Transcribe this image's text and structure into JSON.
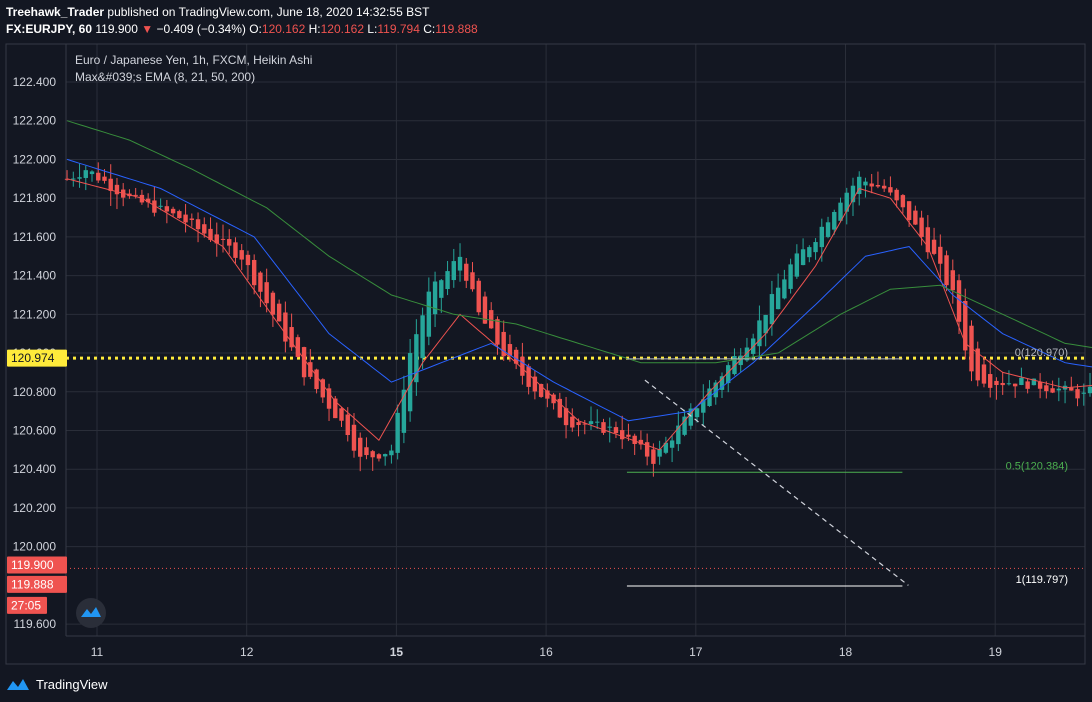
{
  "header": {
    "author": "Treehawk_Trader",
    "published_text": "published on TradingView.com, June 18, 2020 14:32:55 BST",
    "symbol": "FX:EURJPY, 60",
    "last": "119.900",
    "arrow": "▼",
    "change": "−0.409 (−0.34%)",
    "o_label": "O:",
    "o_value": "120.162",
    "h_label": "H:",
    "h_value": "120.162",
    "l_label": "L:",
    "l_value": "119.794",
    "c_label": "C:",
    "c_value": "119.888"
  },
  "legend": {
    "instrument": "Euro / Japanese Yen, 1h, FXCM, Heikin Ashi",
    "indicator": "Max&#039;s EMA (8, 21, 50, 200)"
  },
  "footer": {
    "brand": "TradingView",
    "logo_icon": "tradingview-logo-icon"
  },
  "colors": {
    "up": "#26a69a",
    "down": "#ef5350",
    "ema8": "#ef5350",
    "ema21": "#2962ff",
    "ema50": "#388e3c",
    "yellow": "#ffeb3b"
  },
  "chart_data": {
    "type": "candlestick",
    "title": "Euro / Japanese Yen, 1h, FXCM, Heikin Ashi",
    "ylim": [
      119.55,
      122.49
    ],
    "y_ticks": [
      "122.400",
      "122.200",
      "122.000",
      "121.800",
      "121.600",
      "121.400",
      "121.200",
      "121.000",
      "120.800",
      "120.600",
      "120.400",
      "120.200",
      "120.000",
      "119.600"
    ],
    "y_tick_values": [
      122.4,
      122.2,
      122.0,
      121.8,
      121.6,
      121.4,
      121.2,
      121.0,
      120.8,
      120.6,
      120.4,
      120.2,
      120.0,
      119.6
    ],
    "x_labels": [
      {
        "text": "11",
        "day": 0,
        "bold": false
      },
      {
        "text": "12",
        "day": 1,
        "bold": false
      },
      {
        "text": "15",
        "day": 2,
        "bold": true
      },
      {
        "text": "16",
        "day": 3,
        "bold": false
      },
      {
        "text": "17",
        "day": 4,
        "bold": false
      },
      {
        "text": "18",
        "day": 5,
        "bold": false
      },
      {
        "text": "19",
        "day": 6,
        "bold": false
      }
    ],
    "bars_per_day": 24,
    "start_day": -0.2,
    "price_path": [
      [
        0,
        121.9
      ],
      [
        3,
        121.95
      ],
      [
        10,
        121.8
      ],
      [
        18,
        121.7
      ],
      [
        28,
        121.5
      ],
      [
        38,
        120.9
      ],
      [
        45,
        120.6
      ],
      [
        47,
        120.45
      ],
      [
        52,
        120.5
      ],
      [
        55,
        121.0
      ],
      [
        58,
        121.3
      ],
      [
        63,
        121.5
      ],
      [
        66,
        121.2
      ],
      [
        70,
        121.0
      ],
      [
        74,
        120.85
      ],
      [
        80,
        120.65
      ],
      [
        88,
        120.6
      ],
      [
        94,
        120.45
      ],
      [
        99,
        120.65
      ],
      [
        104,
        120.85
      ],
      [
        110,
        121.1
      ],
      [
        116,
        121.45
      ],
      [
        120,
        121.6
      ],
      [
        124,
        121.8
      ],
      [
        127,
        121.9
      ],
      [
        131,
        121.85
      ],
      [
        135,
        121.7
      ],
      [
        139,
        121.5
      ],
      [
        142,
        121.3
      ],
      [
        145,
        120.9
      ],
      [
        148,
        120.85
      ],
      [
        153,
        120.85
      ],
      [
        158,
        120.82
      ],
      [
        163,
        120.78
      ],
      [
        167,
        120.85
      ],
      [
        170,
        120.95
      ],
      [
        174,
        120.7
      ],
      [
        178,
        120.55
      ],
      [
        183,
        120.35
      ],
      [
        188,
        120.3
      ],
      [
        193,
        120.2
      ],
      [
        196,
        120.2
      ],
      [
        198,
        120.0
      ],
      [
        201,
        120.2
      ],
      [
        205,
        120.3
      ],
      [
        208,
        120.35
      ],
      [
        210,
        120.4
      ],
      [
        213,
        120.1
      ],
      [
        215,
        119.86
      ]
    ],
    "ema_8": [
      [
        0,
        121.9
      ],
      [
        12,
        121.8
      ],
      [
        25,
        121.55
      ],
      [
        35,
        121.1
      ],
      [
        43,
        120.75
      ],
      [
        50,
        120.55
      ],
      [
        57,
        120.95
      ],
      [
        63,
        121.2
      ],
      [
        72,
        120.95
      ],
      [
        82,
        120.65
      ],
      [
        95,
        120.5
      ],
      [
        103,
        120.8
      ],
      [
        112,
        121.1
      ],
      [
        120,
        121.45
      ],
      [
        127,
        121.85
      ],
      [
        132,
        121.8
      ],
      [
        138,
        121.55
      ],
      [
        144,
        121.05
      ],
      [
        150,
        120.9
      ],
      [
        160,
        120.82
      ],
      [
        170,
        120.85
      ],
      [
        178,
        120.6
      ],
      [
        186,
        120.35
      ],
      [
        195,
        120.25
      ],
      [
        200,
        120.12
      ],
      [
        207,
        120.28
      ],
      [
        212,
        120.32
      ],
      [
        216,
        120.05
      ]
    ],
    "ema_21": [
      [
        0,
        122.0
      ],
      [
        15,
        121.85
      ],
      [
        30,
        121.6
      ],
      [
        42,
        121.1
      ],
      [
        52,
        120.85
      ],
      [
        60,
        120.95
      ],
      [
        68,
        121.05
      ],
      [
        78,
        120.85
      ],
      [
        90,
        120.65
      ],
      [
        100,
        120.7
      ],
      [
        110,
        120.95
      ],
      [
        120,
        121.25
      ],
      [
        128,
        121.5
      ],
      [
        135,
        121.55
      ],
      [
        142,
        121.3
      ],
      [
        150,
        121.1
      ],
      [
        160,
        120.95
      ],
      [
        170,
        120.9
      ],
      [
        180,
        120.72
      ],
      [
        190,
        120.5
      ],
      [
        200,
        120.35
      ],
      [
        208,
        120.35
      ],
      [
        216,
        120.25
      ]
    ],
    "ema_50": [
      [
        0,
        122.2
      ],
      [
        10,
        122.1
      ],
      [
        20,
        121.95
      ],
      [
        32,
        121.75
      ],
      [
        42,
        121.5
      ],
      [
        52,
        121.3
      ],
      [
        62,
        121.2
      ],
      [
        72,
        121.15
      ],
      [
        82,
        121.05
      ],
      [
        92,
        120.95
      ],
      [
        104,
        120.95
      ],
      [
        114,
        121.0
      ],
      [
        124,
        121.2
      ],
      [
        132,
        121.33
      ],
      [
        140,
        121.35
      ],
      [
        150,
        121.2
      ],
      [
        160,
        121.05
      ],
      [
        170,
        121.0
      ],
      [
        180,
        120.9
      ],
      [
        190,
        120.75
      ],
      [
        198,
        120.65
      ],
      [
        206,
        120.6
      ],
      [
        213,
        120.53
      ]
    ],
    "horizontal_lines": [
      {
        "name": "yellow-dotted-level",
        "y": 120.974,
        "color": "#ffeb3b",
        "style": "dotted",
        "label": "120.974"
      },
      {
        "name": "last-price-line",
        "y": 119.888,
        "color": "#ef5350",
        "style": "dotted"
      }
    ],
    "fib_levels": [
      {
        "label": "0(120.970)",
        "y": 120.97,
        "color": "#b2b5be",
        "start_day": 3.54,
        "end_day": 5.38
      },
      {
        "label": "0.5(120.384)",
        "y": 120.384,
        "color": "#4caf50",
        "start_day": 3.54,
        "end_day": 5.38
      },
      {
        "label": "1(119.797)",
        "y": 119.797,
        "color": "#ffffff",
        "start_day": 3.54,
        "end_day": 5.38
      }
    ],
    "trend_line": {
      "start": [
        3.66,
        120.86
      ],
      "end": [
        5.42,
        119.8
      ]
    },
    "price_labels": [
      {
        "text": "120.974",
        "y": 120.974,
        "bg": "#ffeb3b",
        "fg": "#131722"
      },
      {
        "text": "119.900",
        "y": 119.9,
        "bg": "#ef5350",
        "fg": "#ffffff"
      },
      {
        "text": "119.888",
        "y": 119.888,
        "bg": "#ef5350",
        "fg": "#ffffff"
      },
      {
        "text": "27:05",
        "y": 119.888,
        "bg": "#ef5350",
        "fg": "#ffffff",
        "countdown": true
      }
    ]
  }
}
